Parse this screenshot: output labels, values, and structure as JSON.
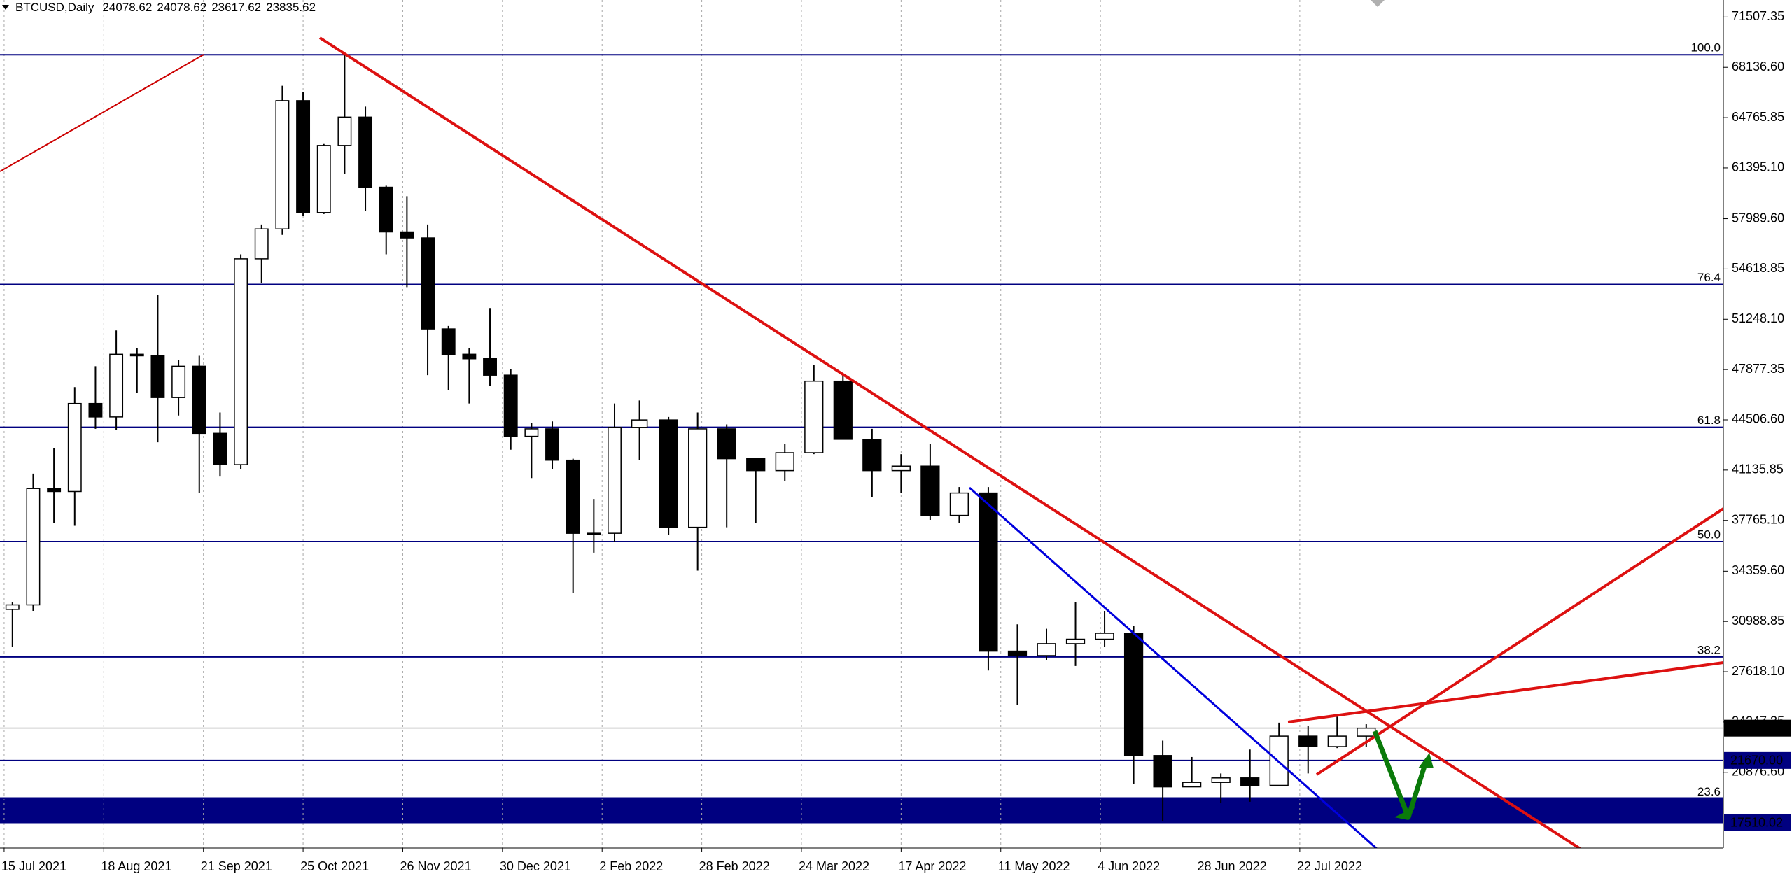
{
  "chart_data": {
    "type": "candlestick",
    "title": "BTCUSD,Daily",
    "header_values": [
      24078.62,
      24078.62,
      23617.62,
      23835.62
    ],
    "x": [
      2,
      7,
      12,
      17,
      22,
      27,
      32,
      37,
      42,
      47,
      52,
      57,
      62,
      67,
      72,
      77,
      82,
      87,
      92,
      97,
      102,
      107,
      112,
      117,
      122,
      127,
      132,
      137,
      142,
      147,
      153,
      160,
      167,
      174,
      181,
      188,
      195,
      202,
      209,
      216,
      223,
      230,
      237,
      244,
      251,
      258,
      265,
      272,
      279,
      286,
      293,
      300,
      307,
      314,
      321,
      328
    ],
    "open": [
      31800,
      32100,
      39900,
      39700,
      45600,
      44700,
      48900,
      48800,
      46000,
      48100,
      43600,
      41500,
      55300,
      57300,
      65900,
      58400,
      62900,
      64800,
      60100,
      57100,
      56700,
      50600,
      48900,
      48600,
      47500,
      43400,
      43900,
      41800,
      36900,
      36900,
      44000,
      44500,
      37300,
      43900,
      41900,
      41100,
      42300,
      47100,
      43200,
      41100,
      41400,
      38100,
      39600,
      29000,
      28700,
      29500,
      29800,
      30200,
      22000,
      19900,
      20200,
      20500,
      20000,
      23300,
      22600,
      23300
    ],
    "high": [
      32300,
      40900,
      42600,
      46700,
      48100,
      50500,
      49300,
      52900,
      48500,
      48800,
      45000,
      55600,
      57600,
      66900,
      66500,
      63000,
      69000,
      65500,
      60200,
      59500,
      57600,
      50800,
      49300,
      52000,
      47900,
      44300,
      44400,
      41900,
      39200,
      45600,
      45800,
      44700,
      45000,
      44200,
      41900,
      42900,
      48200,
      47500,
      43900,
      42200,
      42900,
      40000,
      40000,
      30800,
      30500,
      32300,
      31700,
      30700,
      23000,
      21900,
      20800,
      22400,
      24200,
      24000,
      24600,
      24100
    ],
    "low": [
      29300,
      31700,
      37600,
      37400,
      43900,
      43800,
      46300,
      43000,
      44800,
      39600,
      40700,
      41200,
      53700,
      56900,
      58200,
      58300,
      61000,
      58500,
      55600,
      53400,
      47500,
      46500,
      45600,
      46800,
      42500,
      40600,
      41200,
      32900,
      35600,
      36300,
      41800,
      36800,
      34400,
      37300,
      37600,
      40400,
      42200,
      43200,
      39300,
      39600,
      37800,
      37600,
      27700,
      25400,
      28400,
      28000,
      29300,
      20100,
      17600,
      19900,
      18800,
      18900,
      20000,
      20800,
      22500,
      22600
    ],
    "close": [
      32100,
      39900,
      39700,
      45600,
      44700,
      48900,
      48800,
      46000,
      48100,
      43600,
      41500,
      55300,
      57300,
      65900,
      58400,
      62900,
      64800,
      60100,
      57100,
      56700,
      50600,
      48900,
      48600,
      47500,
      43400,
      43900,
      41800,
      36900,
      36900,
      44000,
      44500,
      37300,
      43900,
      41900,
      41100,
      42300,
      47100,
      43200,
      41100,
      41400,
      38100,
      39600,
      29000,
      28700,
      29500,
      29800,
      30200,
      22000,
      19900,
      20200,
      20500,
      20000,
      23300,
      22600,
      23300,
      23835.62
    ],
    "xlim": [
      -1,
      414
    ],
    "xticks": [
      {
        "value": 0,
        "label": "15 Jul 2021"
      },
      {
        "value": 24,
        "label": "18 Aug 2021"
      },
      {
        "value": 48,
        "label": "21 Sep 2021"
      },
      {
        "value": 72,
        "label": "25 Oct 2021"
      },
      {
        "value": 96,
        "label": "26 Nov 2021"
      },
      {
        "value": 120,
        "label": "30 Dec 2021"
      },
      {
        "value": 144,
        "label": "2 Feb 2022"
      },
      {
        "value": 168,
        "label": "28 Feb 2022"
      },
      {
        "value": 192,
        "label": "24 Mar 2022"
      },
      {
        "value": 216,
        "label": "17 Apr 2022"
      },
      {
        "value": 240,
        "label": "11 May 2022"
      },
      {
        "value": 264,
        "label": "4 Jun 2022"
      },
      {
        "value": 288,
        "label": "28 Jun 2022"
      },
      {
        "value": 312,
        "label": "22 Jul 2022"
      }
    ],
    "ylim": [
      15800,
      72650
    ],
    "yticks": [
      71507.35,
      {
        "value": 68136.6,
        "label": "68136.60"
      },
      64765.85,
      {
        "value": 61395.1,
        "label": "61395.10"
      },
      {
        "value": 57989.6,
        "label": "57989.60"
      },
      54618.85,
      {
        "value": 51248.1,
        "label": "51248.10"
      },
      47877.35,
      {
        "value": 44506.6,
        "label": "44506.60"
      },
      41135.85,
      {
        "value": 37765.1,
        "label": "37765.10"
      },
      {
        "value": 34359.6,
        "label": "34359.60"
      },
      30988.85,
      {
        "value": 27618.1,
        "label": "27618.10"
      },
      24247.35,
      {
        "value": 20876.6,
        "label": "20876.60"
      }
    ],
    "grid": true,
    "bull_color": "#ffffff",
    "bear_color": "#000000",
    "wick_color": "#000000",
    "fib_color": "#000080",
    "fib_levels": [
      {
        "value": 68979,
        "label": "100.0"
      },
      {
        "value": 53583,
        "label": "76.4"
      },
      {
        "value": 44007,
        "label": "61.8"
      },
      {
        "value": 36347,
        "label": "50.0"
      },
      {
        "value": 28610,
        "label": "38.2"
      },
      {
        "value": 19117,
        "label": "23.6"
      }
    ],
    "zone": {
      "from": 17510.02,
      "to": 19200,
      "color": "#000080"
    },
    "price_tags": [
      {
        "value": 23835.62,
        "label": "23835.62",
        "color": "#000000",
        "line_color": "#d0d0d0"
      },
      {
        "value": 21670,
        "label": "21670.00",
        "color": "#000080",
        "line_color": "#000080"
      },
      {
        "value": 17510.02,
        "label": "17510.02",
        "color": "#000080",
        "line_color": "#000080"
      }
    ]
  }
}
